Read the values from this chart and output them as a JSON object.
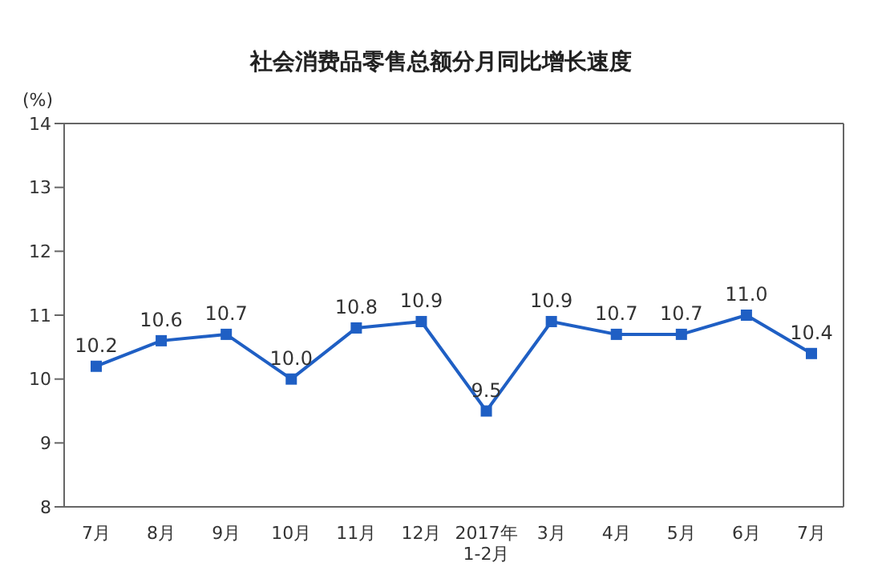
{
  "chart_data": {
    "type": "line",
    "title": "社会消费品零售总额分月同比增长速度",
    "ylabel": "(%)",
    "categories": [
      "7月",
      "8月",
      "9月",
      "10月",
      "11月",
      "12月",
      "2017年\n1-2月",
      "3月",
      "4月",
      "5月",
      "6月",
      "7月"
    ],
    "series": [
      {
        "color": "#1f5fc4",
        "values": [
          10.2,
          10.6,
          10.7,
          10.0,
          10.8,
          10.9,
          9.5,
          10.9,
          10.7,
          10.7,
          11.0,
          10.4
        ],
        "value_labels": [
          "10.2",
          "10.6",
          "10.7",
          "10.0",
          "10.8",
          "10.9",
          "9.5",
          "10.9",
          "10.7",
          "10.7",
          "11.0",
          "10.4"
        ]
      }
    ],
    "ylim": [
      8,
      14
    ],
    "yticks": [
      8,
      9,
      10,
      11,
      12,
      13,
      14
    ],
    "grid": false,
    "marker": "square",
    "line_style": "solid"
  }
}
